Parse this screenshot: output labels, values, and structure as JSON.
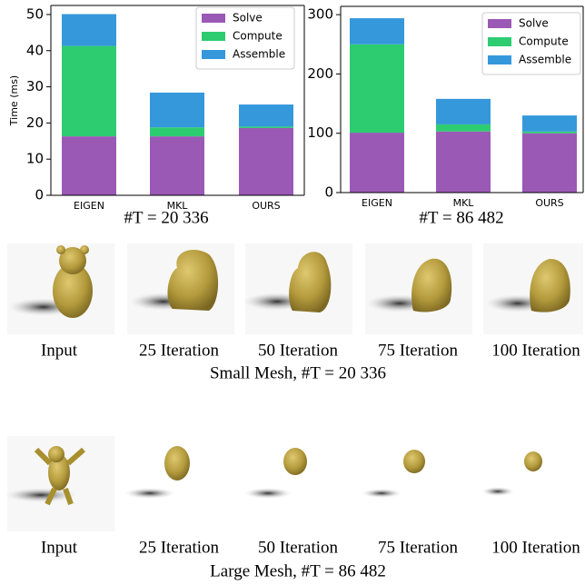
{
  "chart_data": [
    {
      "type": "stacked_bar",
      "ylabel": "Time (ms)",
      "caption": "#T = 20 336",
      "categories": [
        "EIGEN",
        "MKL",
        "OURS"
      ],
      "series": [
        {
          "name": "Solve",
          "color": "#9b59b6",
          "values": [
            16.3,
            16.3,
            18.6
          ]
        },
        {
          "name": "Compute",
          "color": "#2ecc71",
          "values": [
            25.0,
            2.5,
            0.4
          ]
        },
        {
          "name": "Assemble",
          "color": "#3498db",
          "values": [
            8.8,
            9.6,
            6.1
          ]
        }
      ],
      "ylim": [
        0,
        52.5
      ],
      "yticks": [
        0,
        10,
        20,
        30,
        40,
        50
      ],
      "legend": "upper right"
    },
    {
      "type": "stacked_bar",
      "caption": "#T = 86 482",
      "categories": [
        "EIGEN",
        "MKL",
        "OURS"
      ],
      "series": [
        {
          "name": "Solve",
          "color": "#9b59b6",
          "values": [
            101,
            103,
            100
          ]
        },
        {
          "name": "Compute",
          "color": "#2ecc71",
          "values": [
            149,
            12,
            3
          ]
        },
        {
          "name": "Assemble",
          "color": "#3498db",
          "values": [
            44,
            43,
            27
          ]
        }
      ],
      "ylim": [
        0,
        314
      ],
      "yticks": [
        0,
        100,
        200,
        300
      ],
      "legend": "upper right"
    }
  ],
  "rows": [
    {
      "labels": [
        "Input",
        "25 Iteration",
        "50 Iteration",
        "75 Iteration",
        "100 Iteration"
      ],
      "caption": "Small Mesh, #T = 20 336"
    },
    {
      "labels": [
        "Input",
        "25 Iteration",
        "50 Iteration",
        "75 Iteration",
        "100 Iteration"
      ],
      "caption": "Large Mesh, #T = 86 482"
    }
  ]
}
